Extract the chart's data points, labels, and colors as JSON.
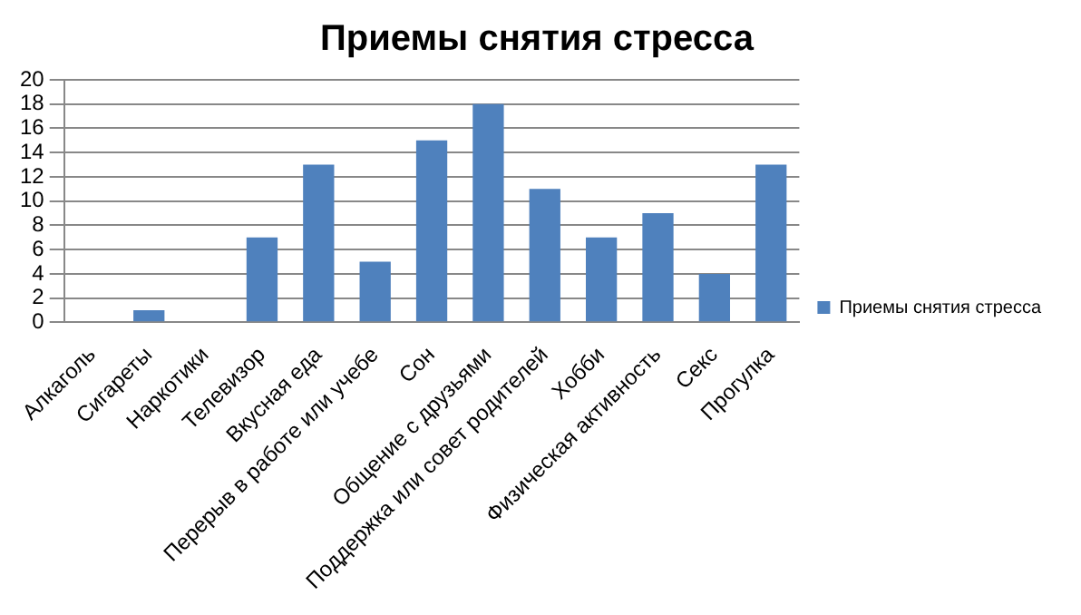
{
  "chart_data": {
    "type": "bar",
    "title": "Приемы снятия стресса",
    "categories": [
      "Алкаголь",
      "Сигареты",
      "Наркотики",
      "Телевизор",
      "Вкусная еда",
      "Перерыв в работе или учебе",
      "Сон",
      "Общение с друзьями",
      "Поддержка или совет родителей",
      "Хобби",
      "Физическая активность",
      "Секс",
      "Прогулка"
    ],
    "series": [
      {
        "name": "Приемы снятия стресса",
        "color": "#4f81bd",
        "values": [
          0,
          1,
          0,
          7,
          13,
          5,
          15,
          18,
          11,
          7,
          9,
          4,
          13
        ]
      }
    ],
    "ylim": [
      0,
      20
    ],
    "yticks": [
      0,
      2,
      4,
      6,
      8,
      10,
      12,
      14,
      16,
      18,
      20
    ],
    "grid": "y",
    "legend": "right"
  }
}
